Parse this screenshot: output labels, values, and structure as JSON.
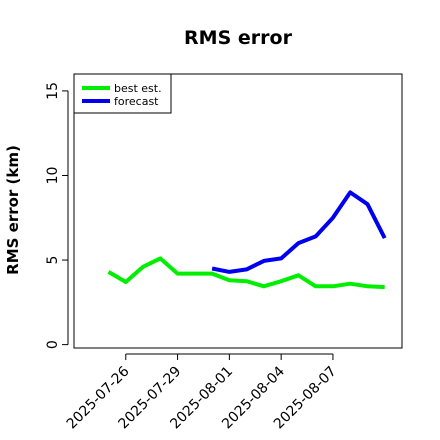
{
  "chart_data": {
    "type": "line",
    "title": "RMS error",
    "xlabel": "",
    "ylabel": "RMS error (km)",
    "xlim": [
      "2025-07-23",
      "2025-08-11"
    ],
    "ylim": [
      -0.2,
      16
    ],
    "x_ticks": [
      "2025-07-26",
      "2025-07-29",
      "2025-08-01",
      "2025-08-04",
      "2025-08-07"
    ],
    "y_ticks": [
      0,
      5,
      10,
      15
    ],
    "grid": false,
    "legend_position": "top-left",
    "series": [
      {
        "name": "best est.",
        "color": "#00ee00",
        "x": [
          "2025-07-25",
          "2025-07-26",
          "2025-07-27",
          "2025-07-28",
          "2025-07-29",
          "2025-07-30",
          "2025-07-31",
          "2025-08-01",
          "2025-08-02",
          "2025-08-03",
          "2025-08-04",
          "2025-08-05",
          "2025-08-06",
          "2025-08-07",
          "2025-08-08",
          "2025-08-09",
          "2025-08-10"
        ],
        "y": [
          4.3,
          3.7,
          4.6,
          5.1,
          4.2,
          4.2,
          4.2,
          3.8,
          3.75,
          3.45,
          3.75,
          4.1,
          3.45,
          3.45,
          3.6,
          3.45,
          3.4
        ]
      },
      {
        "name": "forecast",
        "color": "#0000ee",
        "x": [
          "2025-07-31",
          "2025-08-01",
          "2025-08-02",
          "2025-08-03",
          "2025-08-04",
          "2025-08-05",
          "2025-08-06",
          "2025-08-07",
          "2025-08-08",
          "2025-08-09",
          "2025-08-10"
        ],
        "y": [
          4.5,
          4.3,
          4.45,
          4.95,
          5.1,
          6.0,
          6.4,
          7.5,
          9.0,
          8.3,
          6.3
        ]
      }
    ]
  }
}
